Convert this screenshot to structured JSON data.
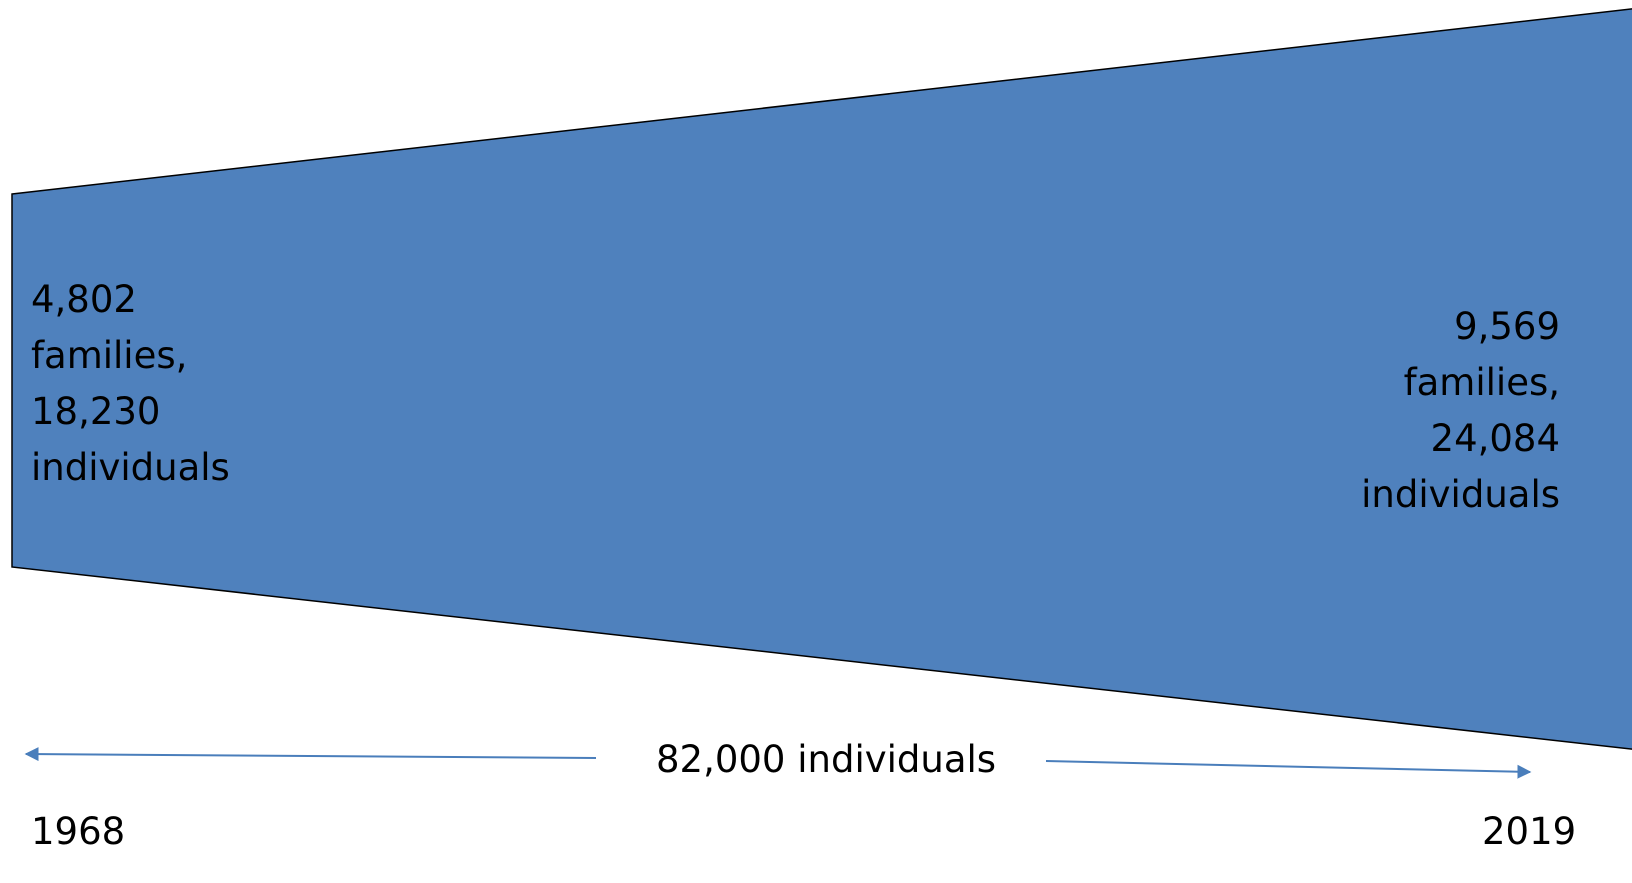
{
  "diagram": {
    "fill_color": "#4F81BD",
    "outline_color": "#000000",
    "arrow_color": "#4A7EBB",
    "start": {
      "year": "1968",
      "families": "4,802",
      "families_word": "families,",
      "individuals": "18,230",
      "individuals_word": "individuals"
    },
    "end": {
      "year": "2019",
      "families": "9,569",
      "families_word": "families,",
      "individuals": "24,084",
      "individuals_word": "individuals"
    },
    "span_label": "82,000 individuals"
  }
}
